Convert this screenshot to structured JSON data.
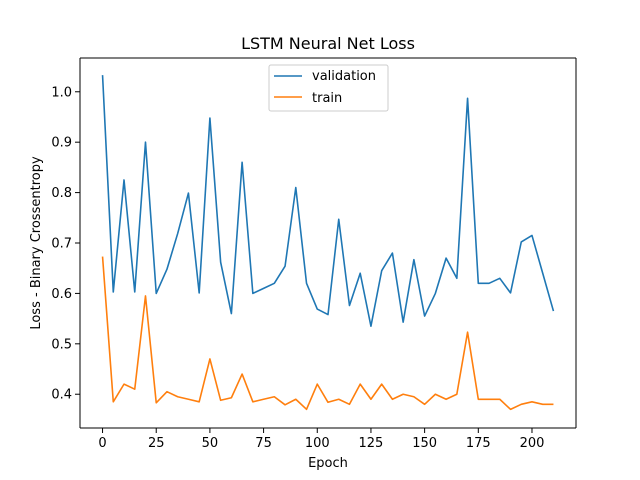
{
  "chart_data": {
    "type": "line",
    "title": "LSTM Neural Net Loss",
    "xlabel": "Epoch",
    "ylabel": "Loss - Binary Crossentropy",
    "xlim": [
      -10.5,
      220.5
    ],
    "ylim": [
      0.333,
      1.067
    ],
    "xticks": [
      0,
      25,
      50,
      75,
      100,
      125,
      150,
      175,
      200
    ],
    "yticks": [
      0.4,
      0.5,
      0.6,
      0.7,
      0.8,
      0.9,
      1.0
    ],
    "xtick_labels": [
      "0",
      "25",
      "50",
      "75",
      "100",
      "125",
      "150",
      "175",
      "200"
    ],
    "ytick_labels": [
      "0.4",
      "0.5",
      "0.6",
      "0.7",
      "0.8",
      "0.9",
      "1.0"
    ],
    "legend_position": "upper-center",
    "grid": false,
    "x": [
      0,
      5,
      10,
      15,
      20,
      25,
      30,
      35,
      40,
      45,
      50,
      55,
      60,
      65,
      70,
      75,
      80,
      85,
      90,
      95,
      100,
      105,
      110,
      115,
      120,
      125,
      130,
      135,
      140,
      145,
      150,
      155,
      160,
      165,
      170,
      175,
      180,
      185,
      190,
      195,
      200,
      205,
      210
    ],
    "series": [
      {
        "name": "validation",
        "color": "#1f77b4",
        "values": [
          1.033,
          0.603,
          0.825,
          0.603,
          0.9,
          0.6,
          0.648,
          0.719,
          0.799,
          0.601,
          0.948,
          0.662,
          0.56,
          0.86,
          0.6,
          0.61,
          0.62,
          0.654,
          0.81,
          0.62,
          0.569,
          0.558,
          0.747,
          0.576,
          0.64,
          0.535,
          0.645,
          0.68,
          0.543,
          0.667,
          0.555,
          0.6,
          0.67,
          0.63,
          0.987,
          0.62,
          0.62,
          0.63,
          0.601,
          0.702,
          0.715,
          0.64,
          0.565
        ]
      },
      {
        "name": "train",
        "color": "#ff7f0e",
        "values": [
          0.673,
          0.385,
          0.42,
          0.41,
          0.595,
          0.383,
          0.405,
          0.395,
          0.39,
          0.385,
          0.47,
          0.388,
          0.393,
          0.44,
          0.385,
          0.39,
          0.395,
          0.379,
          0.39,
          0.37,
          0.42,
          0.384,
          0.39,
          0.38,
          0.42,
          0.39,
          0.42,
          0.39,
          0.4,
          0.395,
          0.38,
          0.4,
          0.39,
          0.4,
          0.523,
          0.39,
          0.39,
          0.39,
          0.37,
          0.38,
          0.385,
          0.38,
          0.38
        ]
      }
    ]
  }
}
